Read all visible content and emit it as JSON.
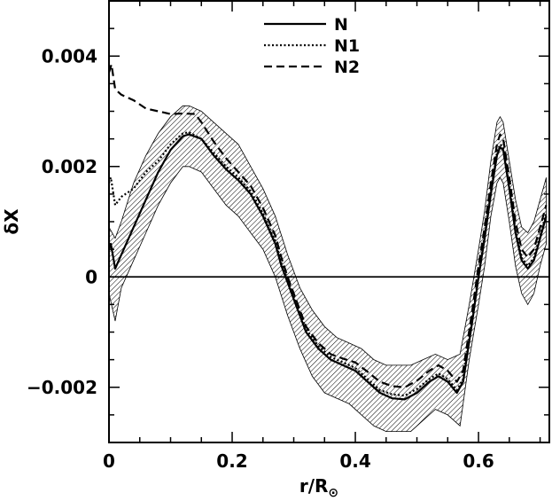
{
  "chart_data": {
    "type": "line",
    "title": "",
    "xlabel": "r/R",
    "xlabel_subscript": "⊙",
    "ylabel": "δX",
    "xlim": [
      0,
      0.715
    ],
    "ylim": [
      -0.003,
      0.005
    ],
    "x_ticks": [
      0,
      0.2,
      0.4,
      0.6
    ],
    "x_tick_labels": [
      "0",
      "0.2",
      "0.4",
      "0.6"
    ],
    "y_ticks": [
      -0.002,
      0,
      0.002,
      0.004
    ],
    "y_tick_labels": [
      "−0.002",
      "0",
      "0.002",
      "0.004"
    ],
    "grid": false,
    "legend_position": "top-center",
    "zero_line": true,
    "series": [
      {
        "name": "N",
        "style": "solid",
        "points": [
          [
            0.0,
            0.0005
          ],
          [
            0.003,
            0.0006
          ],
          [
            0.01,
            0.00015
          ],
          [
            0.02,
            0.0004
          ],
          [
            0.04,
            0.0009
          ],
          [
            0.06,
            0.0014
          ],
          [
            0.08,
            0.0019
          ],
          [
            0.1,
            0.0023
          ],
          [
            0.12,
            0.00255
          ],
          [
            0.13,
            0.00258
          ],
          [
            0.15,
            0.0025
          ],
          [
            0.17,
            0.0022
          ],
          [
            0.19,
            0.00195
          ],
          [
            0.21,
            0.00175
          ],
          [
            0.23,
            0.0015
          ],
          [
            0.25,
            0.0011
          ],
          [
            0.27,
            0.0006
          ],
          [
            0.28,
            0.0002
          ],
          [
            0.29,
            -0.0001
          ],
          [
            0.3,
            -0.0004
          ],
          [
            0.32,
            -0.001
          ],
          [
            0.34,
            -0.0013
          ],
          [
            0.36,
            -0.0015
          ],
          [
            0.38,
            -0.0016
          ],
          [
            0.4,
            -0.0017
          ],
          [
            0.42,
            -0.0019
          ],
          [
            0.44,
            -0.0021
          ],
          [
            0.46,
            -0.0022
          ],
          [
            0.48,
            -0.00222
          ],
          [
            0.5,
            -0.0021
          ],
          [
            0.52,
            -0.0019
          ],
          [
            0.535,
            -0.0018
          ],
          [
            0.55,
            -0.0019
          ],
          [
            0.565,
            -0.0021
          ],
          [
            0.575,
            -0.0019
          ],
          [
            0.59,
            -0.0008
          ],
          [
            0.6,
            0.0
          ],
          [
            0.61,
            0.0007
          ],
          [
            0.62,
            0.0015
          ],
          [
            0.63,
            0.0022
          ],
          [
            0.635,
            0.00235
          ],
          [
            0.64,
            0.0023
          ],
          [
            0.65,
            0.0016
          ],
          [
            0.66,
            0.0008
          ],
          [
            0.67,
            0.0003
          ],
          [
            0.68,
            0.00015
          ],
          [
            0.69,
            0.0003
          ],
          [
            0.7,
            0.0007
          ],
          [
            0.71,
            0.0011
          ]
        ]
      },
      {
        "name": "N1",
        "style": "dotted",
        "points": [
          [
            0.0,
            0.0017
          ],
          [
            0.003,
            0.0018
          ],
          [
            0.01,
            0.0013
          ],
          [
            0.02,
            0.00145
          ],
          [
            0.04,
            0.0016
          ],
          [
            0.06,
            0.0019
          ],
          [
            0.08,
            0.0021
          ],
          [
            0.1,
            0.0024
          ],
          [
            0.12,
            0.0026
          ],
          [
            0.13,
            0.00262
          ],
          [
            0.15,
            0.0025
          ],
          [
            0.17,
            0.00225
          ],
          [
            0.19,
            0.002
          ],
          [
            0.21,
            0.0018
          ],
          [
            0.23,
            0.00155
          ],
          [
            0.25,
            0.00115
          ],
          [
            0.27,
            0.00065
          ],
          [
            0.28,
            0.00025
          ],
          [
            0.29,
            -5e-05
          ],
          [
            0.3,
            -0.00035
          ],
          [
            0.32,
            -0.00095
          ],
          [
            0.34,
            -0.00125
          ],
          [
            0.36,
            -0.00145
          ],
          [
            0.38,
            -0.00155
          ],
          [
            0.4,
            -0.00165
          ],
          [
            0.42,
            -0.00185
          ],
          [
            0.44,
            -0.00205
          ],
          [
            0.46,
            -0.00213
          ],
          [
            0.48,
            -0.00215
          ],
          [
            0.5,
            -0.00203
          ],
          [
            0.52,
            -0.00185
          ],
          [
            0.535,
            -0.00175
          ],
          [
            0.55,
            -0.00185
          ],
          [
            0.565,
            -0.00205
          ],
          [
            0.575,
            -0.00185
          ],
          [
            0.59,
            -0.00075
          ],
          [
            0.6,
            5e-05
          ],
          [
            0.61,
            0.00075
          ],
          [
            0.62,
            0.00155
          ],
          [
            0.63,
            0.00225
          ],
          [
            0.635,
            0.0024
          ],
          [
            0.64,
            0.00235
          ],
          [
            0.65,
            0.00165
          ],
          [
            0.66,
            0.00085
          ],
          [
            0.67,
            0.00035
          ],
          [
            0.68,
            0.0002
          ],
          [
            0.69,
            0.00035
          ],
          [
            0.7,
            0.00075
          ],
          [
            0.71,
            0.00115
          ]
        ]
      },
      {
        "name": "N2",
        "style": "dashed",
        "points": [
          [
            0.0,
            0.0037
          ],
          [
            0.004,
            0.00385
          ],
          [
            0.01,
            0.0034
          ],
          [
            0.02,
            0.0033
          ],
          [
            0.04,
            0.0032
          ],
          [
            0.06,
            0.00305
          ],
          [
            0.08,
            0.003
          ],
          [
            0.1,
            0.00295
          ],
          [
            0.12,
            0.00296
          ],
          [
            0.14,
            0.00295
          ],
          [
            0.15,
            0.0028
          ],
          [
            0.17,
            0.00245
          ],
          [
            0.19,
            0.00215
          ],
          [
            0.21,
            0.0019
          ],
          [
            0.23,
            0.00165
          ],
          [
            0.25,
            0.00125
          ],
          [
            0.27,
            0.00075
          ],
          [
            0.28,
            0.00035
          ],
          [
            0.29,
            0.0
          ],
          [
            0.3,
            -0.0003
          ],
          [
            0.32,
            -0.0009
          ],
          [
            0.34,
            -0.0012
          ],
          [
            0.36,
            -0.0014
          ],
          [
            0.38,
            -0.00148
          ],
          [
            0.4,
            -0.00155
          ],
          [
            0.42,
            -0.00172
          ],
          [
            0.44,
            -0.0019
          ],
          [
            0.46,
            -0.00198
          ],
          [
            0.48,
            -0.002
          ],
          [
            0.5,
            -0.00188
          ],
          [
            0.52,
            -0.0017
          ],
          [
            0.535,
            -0.0016
          ],
          [
            0.55,
            -0.0017
          ],
          [
            0.565,
            -0.0019
          ],
          [
            0.575,
            -0.0017
          ],
          [
            0.59,
            -0.0006
          ],
          [
            0.6,
            0.0002
          ],
          [
            0.61,
            0.0009
          ],
          [
            0.62,
            0.0017
          ],
          [
            0.63,
            0.0024
          ],
          [
            0.635,
            0.00258
          ],
          [
            0.64,
            0.0025
          ],
          [
            0.65,
            0.0018
          ],
          [
            0.66,
            0.001
          ],
          [
            0.67,
            0.0005
          ],
          [
            0.68,
            0.00035
          ],
          [
            0.69,
            0.0005
          ],
          [
            0.7,
            0.0009
          ],
          [
            0.71,
            0.0013
          ]
        ]
      }
    ],
    "uncertainty_band": {
      "fill": "hatched",
      "upper": [
        [
          0.0,
          0.0009
        ],
        [
          0.01,
          0.0007
        ],
        [
          0.02,
          0.001
        ],
        [
          0.04,
          0.0017
        ],
        [
          0.06,
          0.0022
        ],
        [
          0.08,
          0.0026
        ],
        [
          0.1,
          0.0029
        ],
        [
          0.12,
          0.0031
        ],
        [
          0.13,
          0.0031
        ],
        [
          0.15,
          0.003
        ],
        [
          0.17,
          0.0028
        ],
        [
          0.19,
          0.0026
        ],
        [
          0.21,
          0.0024
        ],
        [
          0.23,
          0.002
        ],
        [
          0.25,
          0.0016
        ],
        [
          0.27,
          0.0011
        ],
        [
          0.29,
          0.0004
        ],
        [
          0.31,
          -0.0002
        ],
        [
          0.33,
          -0.0006
        ],
        [
          0.35,
          -0.0009
        ],
        [
          0.37,
          -0.0011
        ],
        [
          0.39,
          -0.0012
        ],
        [
          0.41,
          -0.0013
        ],
        [
          0.43,
          -0.0015
        ],
        [
          0.45,
          -0.0016
        ],
        [
          0.47,
          -0.0016
        ],
        [
          0.49,
          -0.0016
        ],
        [
          0.51,
          -0.0015
        ],
        [
          0.53,
          -0.0014
        ],
        [
          0.55,
          -0.0015
        ],
        [
          0.57,
          -0.0014
        ],
        [
          0.585,
          -0.0005
        ],
        [
          0.6,
          0.0005
        ],
        [
          0.61,
          0.0012
        ],
        [
          0.62,
          0.0021
        ],
        [
          0.63,
          0.0028
        ],
        [
          0.635,
          0.0029
        ],
        [
          0.64,
          0.0028
        ],
        [
          0.65,
          0.0021
        ],
        [
          0.66,
          0.0014
        ],
        [
          0.67,
          0.0009
        ],
        [
          0.68,
          0.0008
        ],
        [
          0.69,
          0.001
        ],
        [
          0.7,
          0.0014
        ],
        [
          0.71,
          0.0018
        ]
      ],
      "lower": [
        [
          0.0,
          -0.0003
        ],
        [
          0.01,
          -0.0008
        ],
        [
          0.02,
          -0.0002
        ],
        [
          0.04,
          0.0003
        ],
        [
          0.06,
          0.0008
        ],
        [
          0.08,
          0.0013
        ],
        [
          0.1,
          0.0017
        ],
        [
          0.12,
          0.002
        ],
        [
          0.13,
          0.002
        ],
        [
          0.15,
          0.0019
        ],
        [
          0.17,
          0.0016
        ],
        [
          0.19,
          0.0013
        ],
        [
          0.21,
          0.0011
        ],
        [
          0.23,
          0.0008
        ],
        [
          0.25,
          0.0005
        ],
        [
          0.27,
          0.0
        ],
        [
          0.29,
          -0.0007
        ],
        [
          0.31,
          -0.0013
        ],
        [
          0.33,
          -0.0018
        ],
        [
          0.35,
          -0.0021
        ],
        [
          0.37,
          -0.0022
        ],
        [
          0.39,
          -0.0023
        ],
        [
          0.41,
          -0.0025
        ],
        [
          0.43,
          -0.0027
        ],
        [
          0.45,
          -0.0028
        ],
        [
          0.47,
          -0.0028
        ],
        [
          0.49,
          -0.0028
        ],
        [
          0.51,
          -0.0026
        ],
        [
          0.53,
          -0.0024
        ],
        [
          0.55,
          -0.0025
        ],
        [
          0.57,
          -0.0027
        ],
        [
          0.585,
          -0.0015
        ],
        [
          0.6,
          -0.0005
        ],
        [
          0.61,
          0.0002
        ],
        [
          0.62,
          0.0011
        ],
        [
          0.63,
          0.0017
        ],
        [
          0.635,
          0.0018
        ],
        [
          0.64,
          0.0017
        ],
        [
          0.65,
          0.001
        ],
        [
          0.66,
          0.0002
        ],
        [
          0.67,
          -0.0003
        ],
        [
          0.68,
          -0.0005
        ],
        [
          0.69,
          -0.0003
        ],
        [
          0.7,
          0.0002
        ],
        [
          0.71,
          0.0006
        ]
      ]
    }
  }
}
